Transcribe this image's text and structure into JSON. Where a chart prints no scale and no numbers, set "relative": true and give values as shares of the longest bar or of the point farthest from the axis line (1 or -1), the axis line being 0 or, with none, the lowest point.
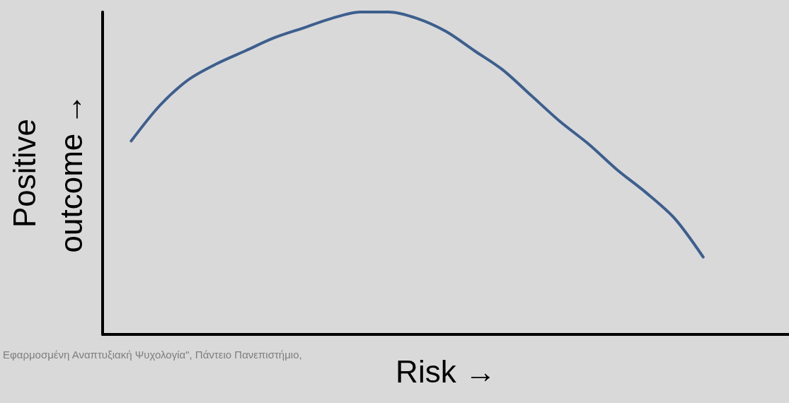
{
  "chart_data": {
    "type": "line",
    "relative": true,
    "xlabel": "Risk →",
    "ylabel": "Positive outcome →",
    "annotations": [
      "Εφαρμοσμένη Αναπτυξιακή Ψυχολογία\", Πάντειο Πανεπιστήμιο,"
    ],
    "categories": [
      null,
      null,
      null,
      null,
      null,
      null,
      null,
      null,
      null,
      null,
      null,
      null,
      null,
      null,
      null,
      null,
      null,
      null,
      null,
      null,
      null,
      null,
      null,
      null,
      null
    ],
    "series": [
      {
        "color": "#3c5f8e",
        "values": [
          null,
          0.6,
          0.71,
          0.79,
          0.84,
          0.88,
          0.92,
          0.95,
          0.98,
          1,
          1,
          0.98,
          0.94,
          0.88,
          0.82,
          0.74,
          0.66,
          0.59,
          0.51,
          0.44,
          0.36,
          0.24,
          null,
          null,
          null
        ]
      }
    ],
    "marker": "none",
    "grid": false
  }
}
